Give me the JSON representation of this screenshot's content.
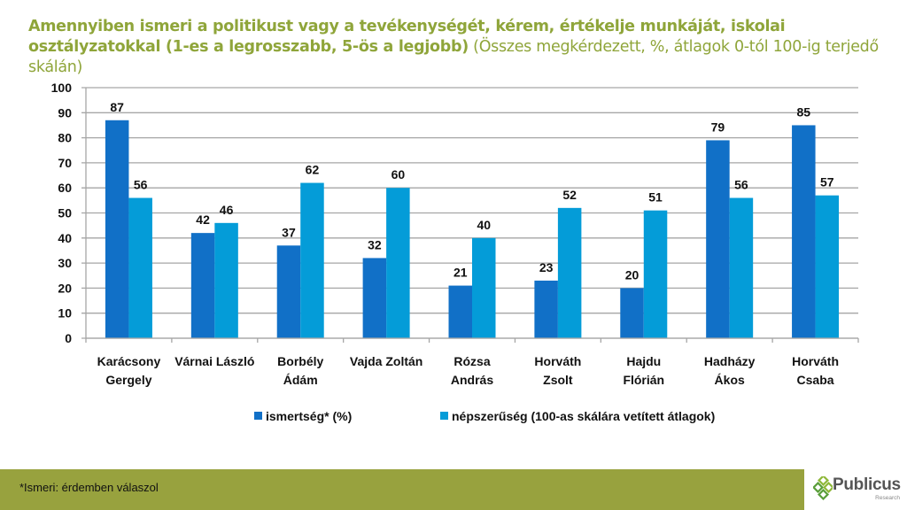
{
  "title": {
    "bold": "Amennyiben ismeri a politikust vagy a tevékenységét, kérem, értékelje munkáját, iskolai osztályzatokkal (1-es a legrosszabb, 5-ös a legjobb)",
    "normal": "(Összes megkérdezett, %, átlagok 0-tól 100-ig terjedő skálán)"
  },
  "footer": {
    "note": "*Ismeri: érdemben válaszol",
    "logo_text": "Publicus",
    "logo_sub": "Research"
  },
  "colors": {
    "series1": "#1170c7",
    "series2": "#049cd8",
    "title": "#8fa53a",
    "footer": "#98a23e",
    "grid": "#a6a6a6"
  },
  "chart_data": {
    "type": "bar",
    "title": "Amennyiben ismeri a politikust vagy a tevékenységét, kérem, értékelje munkáját, iskolai osztályzatokkal (1-es a legrosszabb, 5-ös a legjobb) (Összes megkérdezett, %, átlagok 0-tól 100-ig terjedő skálán)",
    "xlabel": "",
    "ylabel": "",
    "ylim": [
      0,
      100
    ],
    "yticks": [
      0,
      10,
      20,
      30,
      40,
      50,
      60,
      70,
      80,
      90,
      100
    ],
    "grid": true,
    "legend_position": "bottom",
    "categories": [
      [
        "Karácsony",
        "Gergely"
      ],
      [
        "Várnai László"
      ],
      [
        "Borbély",
        "Ádám"
      ],
      [
        "Vajda Zoltán"
      ],
      [
        "Rózsa",
        "András"
      ],
      [
        "Horváth",
        "Zsolt"
      ],
      [
        "Hajdu",
        "Flórián"
      ],
      [
        "Hadházy",
        "Ákos"
      ],
      [
        "Horváth",
        "Csaba"
      ]
    ],
    "series": [
      {
        "name": "ismertség* (%)",
        "values": [
          87,
          42,
          37,
          32,
          21,
          23,
          20,
          79,
          85
        ]
      },
      {
        "name": "népszerűség (100-as skálára vetített átlagok)",
        "values": [
          56,
          46,
          62,
          60,
          40,
          52,
          51,
          56,
          57
        ]
      }
    ]
  }
}
